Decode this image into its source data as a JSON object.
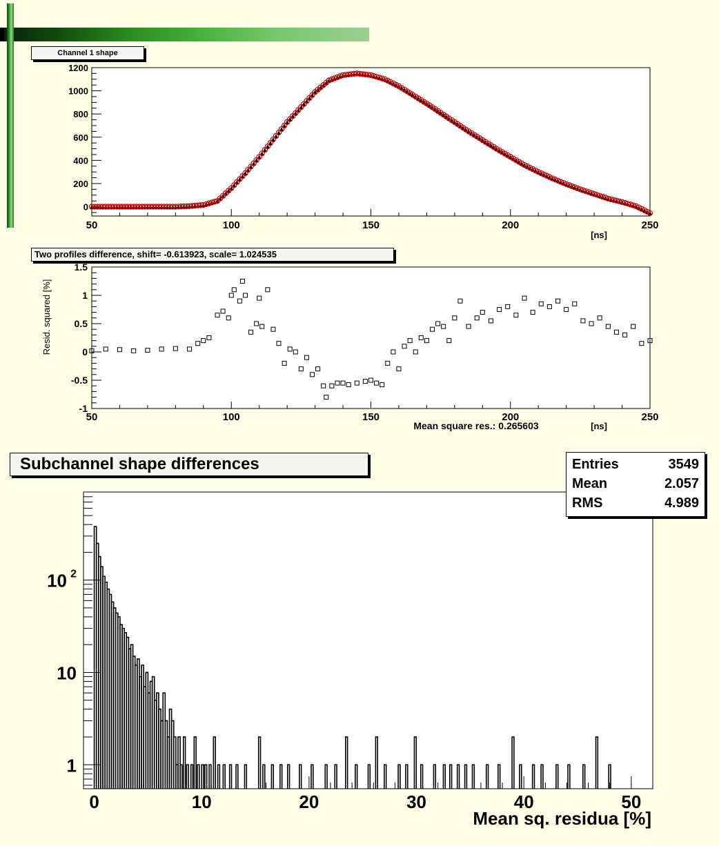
{
  "decor": {
    "bar_color": "#2a8c1f",
    "background": "#fefde6"
  },
  "chart_data": [
    {
      "type": "scatter",
      "title": "Channel  1 shape",
      "xlabel": "[ns]",
      "ylabel": "",
      "xlim": [
        50,
        250
      ],
      "ylim": [
        -80,
        1200
      ],
      "xticks": [
        50,
        100,
        150,
        200,
        250
      ],
      "yticks": [
        0,
        200,
        400,
        600,
        800,
        1000,
        1200
      ],
      "grid": false,
      "series": [
        {
          "marker": "triangle",
          "color": "#000000",
          "x": [
            50,
            60,
            70,
            80,
            85,
            90,
            95,
            100,
            105,
            110,
            115,
            120,
            125,
            130,
            135,
            140,
            145,
            150,
            155,
            160,
            165,
            170,
            175,
            180,
            185,
            190,
            195,
            200,
            205,
            210,
            215,
            220,
            225,
            230,
            235,
            240,
            245,
            250
          ],
          "y": [
            0,
            0,
            0,
            0,
            5,
            15,
            50,
            160,
            290,
            430,
            580,
            730,
            860,
            990,
            1090,
            1135,
            1150,
            1135,
            1100,
            1040,
            965,
            890,
            810,
            730,
            650,
            575,
            500,
            430,
            360,
            300,
            245,
            195,
            150,
            110,
            70,
            40,
            5,
            -55
          ]
        },
        {
          "marker": "open-circle",
          "color": "#cc0000",
          "x": [
            50,
            60,
            70,
            80,
            85,
            90,
            95,
            100,
            105,
            110,
            115,
            120,
            125,
            130,
            135,
            140,
            145,
            150,
            155,
            160,
            165,
            170,
            175,
            180,
            185,
            190,
            195,
            200,
            205,
            210,
            215,
            220,
            225,
            230,
            235,
            240,
            245,
            250
          ],
          "y": [
            0,
            0,
            0,
            0,
            5,
            15,
            50,
            160,
            290,
            430,
            580,
            730,
            860,
            990,
            1090,
            1135,
            1150,
            1135,
            1100,
            1040,
            965,
            890,
            810,
            730,
            650,
            575,
            500,
            430,
            360,
            300,
            245,
            195,
            150,
            110,
            70,
            40,
            5,
            -55
          ]
        }
      ]
    },
    {
      "type": "scatter",
      "title": "Two profiles difference, shift= -0.613923, scale= 1.024535",
      "xlabel": "[ns]",
      "ylabel": "Resid. squared [%]",
      "annotation": "Mean square res.: 0.265603",
      "xlim": [
        50,
        250
      ],
      "ylim": [
        -1,
        1.5
      ],
      "xticks": [
        50,
        100,
        150,
        200,
        250
      ],
      "yticks": [
        -1,
        -0.5,
        0,
        0.5,
        1,
        1.5
      ],
      "grid": false,
      "series": [
        {
          "marker": "open-square",
          "color": "#000000",
          "x": [
            50,
            55,
            60,
            65,
            70,
            75,
            80,
            85,
            88,
            90,
            92,
            95,
            97,
            99,
            100,
            101,
            103,
            104,
            105,
            107,
            109,
            110,
            111,
            113,
            115,
            117,
            119,
            121,
            123,
            125,
            127,
            129,
            131,
            133,
            134,
            136,
            138,
            140,
            142,
            145,
            148,
            150,
            152,
            154,
            156,
            158,
            160,
            162,
            164,
            166,
            168,
            170,
            172,
            174,
            176,
            178,
            180,
            182,
            185,
            188,
            190,
            193,
            196,
            199,
            202,
            205,
            208,
            211,
            214,
            217,
            220,
            223,
            226,
            229,
            232,
            235,
            238,
            241,
            244,
            247,
            250
          ],
          "y": [
            0.02,
            0.05,
            0.04,
            0.02,
            0.03,
            0.05,
            0.06,
            0.05,
            0.15,
            0.2,
            0.25,
            0.65,
            0.72,
            0.6,
            1.0,
            1.1,
            0.9,
            1.25,
            1.0,
            0.35,
            0.5,
            0.95,
            0.45,
            1.1,
            0.4,
            0.15,
            -0.2,
            0.05,
            0.0,
            -0.3,
            -0.1,
            -0.4,
            -0.3,
            -0.6,
            -0.8,
            -0.6,
            -0.55,
            -0.55,
            -0.58,
            -0.55,
            -0.52,
            -0.5,
            -0.55,
            -0.58,
            -0.2,
            0.0,
            -0.3,
            0.1,
            0.2,
            0.0,
            0.25,
            0.2,
            0.4,
            0.5,
            0.45,
            0.2,
            0.6,
            0.9,
            0.45,
            0.6,
            0.7,
            0.55,
            0.75,
            0.8,
            0.65,
            0.95,
            0.7,
            0.85,
            0.8,
            0.9,
            0.75,
            0.85,
            0.55,
            0.5,
            0.6,
            0.45,
            0.35,
            0.3,
            0.45,
            0.15,
            0.2
          ]
        }
      ]
    },
    {
      "type": "bar",
      "subtype": "histogram",
      "title": "Subchannel shape differences",
      "xlabel": "Mean sq. residua [%]",
      "ylabel": "",
      "log_y": true,
      "xlim": [
        -1,
        52
      ],
      "ylim": [
        0.55,
        900
      ],
      "xticks": [
        0,
        10,
        20,
        30,
        40,
        50
      ],
      "ytick_labels": [
        {
          "value": 1,
          "label": "1"
        },
        {
          "value": 10,
          "label": "10"
        },
        {
          "value": 100,
          "label": "10",
          "exp": "2"
        }
      ],
      "grid": false,
      "legend": "top-right",
      "stats": {
        "entries_label": "Entries",
        "entries": "3549",
        "mean_label": "Mean",
        "mean": "2.057",
        "rms_label": "RMS",
        "rms": "4.989"
      },
      "bin_width": 0.1,
      "bins": [
        [
          0.0,
          380
        ],
        [
          0.2,
          250
        ],
        [
          0.4,
          180
        ],
        [
          0.6,
          140
        ],
        [
          0.8,
          110
        ],
        [
          1.0,
          95
        ],
        [
          1.2,
          80
        ],
        [
          1.4,
          70
        ],
        [
          1.6,
          58
        ],
        [
          1.8,
          50
        ],
        [
          2.0,
          44
        ],
        [
          2.2,
          40
        ],
        [
          2.4,
          33
        ],
        [
          2.6,
          30
        ],
        [
          2.8,
          27
        ],
        [
          3.0,
          24
        ],
        [
          3.2,
          18
        ],
        [
          3.4,
          20
        ],
        [
          3.6,
          15
        ],
        [
          3.8,
          12
        ],
        [
          4.0,
          14
        ],
        [
          4.2,
          9
        ],
        [
          4.4,
          12
        ],
        [
          4.6,
          7
        ],
        [
          4.8,
          10
        ],
        [
          5.0,
          6
        ],
        [
          5.2,
          8
        ],
        [
          5.4,
          9
        ],
        [
          5.6,
          5
        ],
        [
          5.8,
          6
        ],
        [
          6.0,
          4
        ],
        [
          6.2,
          3
        ],
        [
          6.4,
          6
        ],
        [
          6.6,
          3
        ],
        [
          6.8,
          2
        ],
        [
          7.0,
          4
        ],
        [
          7.2,
          3
        ],
        [
          7.4,
          2
        ],
        [
          7.6,
          1
        ],
        [
          7.8,
          2
        ],
        [
          8.0,
          1
        ],
        [
          8.3,
          2
        ],
        [
          8.6,
          1
        ],
        [
          9.0,
          1
        ],
        [
          9.3,
          2
        ],
        [
          9.6,
          1
        ],
        [
          10.0,
          1
        ],
        [
          10.3,
          1
        ],
        [
          10.7,
          1
        ],
        [
          11.1,
          2
        ],
        [
          11.5,
          1
        ],
        [
          12.0,
          1
        ],
        [
          12.6,
          1
        ],
        [
          13.2,
          1
        ],
        [
          14.0,
          1
        ],
        [
          15.3,
          2
        ],
        [
          15.7,
          1
        ],
        [
          16.5,
          1
        ],
        [
          17.3,
          1
        ],
        [
          18.0,
          1
        ],
        [
          19.1,
          1
        ],
        [
          20.2,
          1
        ],
        [
          21.5,
          1
        ],
        [
          22.4,
          1
        ],
        [
          23.4,
          2
        ],
        [
          24.3,
          1
        ],
        [
          25.5,
          1
        ],
        [
          26.2,
          2
        ],
        [
          27.0,
          1
        ],
        [
          28.3,
          1
        ],
        [
          29.0,
          1
        ],
        [
          29.8,
          2
        ],
        [
          30.4,
          1
        ],
        [
          31.6,
          1
        ],
        [
          32.5,
          1
        ],
        [
          33.1,
          1
        ],
        [
          33.8,
          1
        ],
        [
          34.5,
          1
        ],
        [
          35.2,
          1
        ],
        [
          36.5,
          1
        ],
        [
          37.6,
          1
        ],
        [
          38.9,
          2
        ],
        [
          39.6,
          1
        ],
        [
          40.8,
          1
        ],
        [
          41.6,
          1
        ],
        [
          43.0,
          1
        ],
        [
          44.1,
          1
        ],
        [
          45.5,
          1
        ],
        [
          46.7,
          2
        ],
        [
          47.9,
          1
        ]
      ]
    }
  ]
}
